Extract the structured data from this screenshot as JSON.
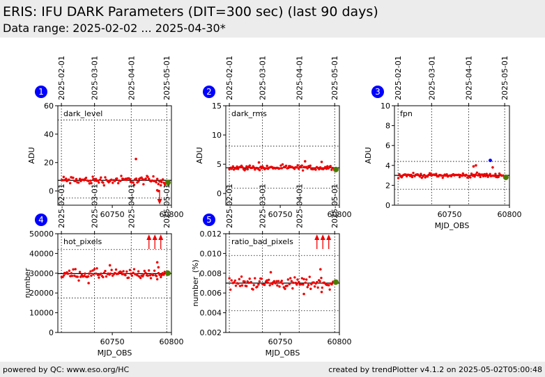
{
  "header": {
    "title": "ERIS: IFU DARK Parameters (DIT=300 sec) (last 90 days)",
    "subtitle": "Data range: 2025-02-02 ... 2025-04-30*"
  },
  "footer": {
    "left": "powered by QC: www.eso.org/HC",
    "right": "created by trendPlotter v4.1.2 on 2025-05-02T05:00:48"
  },
  "colors": {
    "data": "#ee0000",
    "latest": "#4d7a00",
    "highlight": "#0000ff",
    "badge": "#0000ff",
    "arrow": "#ee0000"
  },
  "chart_data": [
    {
      "type": "scatter",
      "badge": "1",
      "label": "dark_level",
      "ylabel": "ADU",
      "xlabel": "",
      "ylim": [
        -10,
        60
      ],
      "yticks": [
        "0",
        "20",
        "40",
        "60"
      ],
      "xlim": [
        60704,
        60800
      ],
      "xticks": [
        "60750",
        "60800"
      ],
      "date_ticks": [
        "2025-02-01",
        "2025-03-01",
        "2025-04-01",
        "2025-05-01"
      ],
      "date_tick_mjd": [
        60707,
        60735,
        60766,
        60796
      ],
      "median": 7.5,
      "upper_limit": 50,
      "lower_limit": -5,
      "center": 7.5,
      "spread": 2.2,
      "outliers": [
        [
          60770,
          22.5
        ],
        [
          60788,
          0.5
        ],
        [
          60789,
          0
        ],
        [
          60791,
          4
        ]
      ],
      "latest": [
        60797,
        6
      ],
      "off_scale_low": [
        60790
      ],
      "off_scale_high": []
    },
    {
      "type": "scatter",
      "badge": "2",
      "label": "dark_rms",
      "ylabel": "ADU",
      "xlabel": "",
      "ylim": [
        -2,
        15
      ],
      "yticks": [
        "0",
        "5",
        "10",
        "15"
      ],
      "xlim": [
        60704,
        60800
      ],
      "xticks": [
        "60750",
        "60800"
      ],
      "date_ticks": [
        "2025-02-01",
        "2025-03-01",
        "2025-04-01",
        "2025-05-01"
      ],
      "date_tick_mjd": [
        60707,
        60735,
        60766,
        60796
      ],
      "median": 4.4,
      "upper_limit": 8.1,
      "lower_limit": 0.9,
      "center": 4.4,
      "spread": 0.3,
      "outliers": [
        [
          60732,
          5.3
        ],
        [
          60771,
          5.5
        ],
        [
          60785,
          5.4
        ]
      ],
      "latest": [
        60797,
        4.1
      ],
      "off_scale_low": [],
      "off_scale_high": []
    },
    {
      "type": "scatter",
      "badge": "3",
      "label": "fpn",
      "ylabel": "ADU",
      "xlabel": "MJD_OBS",
      "ylim": [
        0,
        10
      ],
      "yticks": [
        "0",
        "2",
        "4",
        "6",
        "8",
        "10"
      ],
      "xlim": [
        60704,
        60800
      ],
      "xticks": [
        "60750",
        "60800"
      ],
      "date_ticks": [
        "2025-02-01",
        "2025-03-01",
        "2025-04-01",
        "2025-05-01"
      ],
      "date_tick_mjd": [
        60707,
        60735,
        60766,
        60796
      ],
      "median": 3.0,
      "upper_limit": 4.4,
      "lower_limit": 1.6,
      "center": 3.0,
      "spread": 0.15,
      "outliers": [
        [
          60770,
          3.9
        ],
        [
          60772,
          4.0
        ],
        [
          60786,
          3.8
        ]
      ],
      "highlight": [
        60784,
        4.5
      ],
      "latest": [
        60797,
        2.8
      ],
      "off_scale_low": [],
      "off_scale_high": []
    },
    {
      "type": "scatter",
      "badge": "4",
      "label": "hot_pixels",
      "ylabel": "number",
      "xlabel": "MJD_OBS",
      "ylim": [
        0,
        50000
      ],
      "yticks": [
        "0",
        "10000",
        "20000",
        "30000",
        "40000",
        "50000"
      ],
      "xlim": [
        60704,
        60800
      ],
      "xticks": [
        "60750",
        "60800"
      ],
      "date_ticks": [
        "2025-02-01",
        "2025-03-01",
        "2025-04-01",
        "2025-05-01"
      ],
      "date_tick_mjd": [
        60707,
        60735,
        60766,
        60796
      ],
      "median": 29800,
      "upper_limit": 42000,
      "lower_limit": 17500,
      "center": 29500,
      "spread": 1800,
      "outliers": [
        [
          60730,
          25000
        ],
        [
          60748,
          34000
        ],
        [
          60788,
          35500
        ],
        [
          60789,
          33000
        ]
      ],
      "latest": [
        60797,
        30000
      ],
      "off_scale_low": [],
      "off_scale_high": [
        60781,
        60786,
        60791
      ]
    },
    {
      "type": "scatter",
      "badge": "5",
      "label": "ratio_bad_pixels",
      "ylabel": "number_(%)",
      "xlabel": "MJD_OBS",
      "ylim": [
        0.002,
        0.012
      ],
      "yticks": [
        "0.002",
        "0.004",
        "0.006",
        "0.008",
        "0.010",
        "0.012"
      ],
      "xlim": [
        60704,
        60800
      ],
      "xticks": [
        "60750",
        "60800"
      ],
      "date_ticks": [
        "2025-02-01",
        "2025-03-01",
        "2025-04-01",
        "2025-05-01"
      ],
      "date_tick_mjd": [
        60707,
        60735,
        60766,
        60796
      ],
      "median": 0.007,
      "upper_limit": 0.0098,
      "lower_limit": 0.0042,
      "center": 0.007,
      "spread": 0.00045,
      "outliers": [
        [
          60742,
          0.0081
        ],
        [
          60784,
          0.0084
        ],
        [
          60770,
          0.0059
        ],
        [
          60785,
          0.0061
        ]
      ],
      "latest": [
        60797,
        0.0071
      ],
      "off_scale_low": [],
      "off_scale_high": [
        60781,
        60786,
        60791
      ]
    }
  ]
}
